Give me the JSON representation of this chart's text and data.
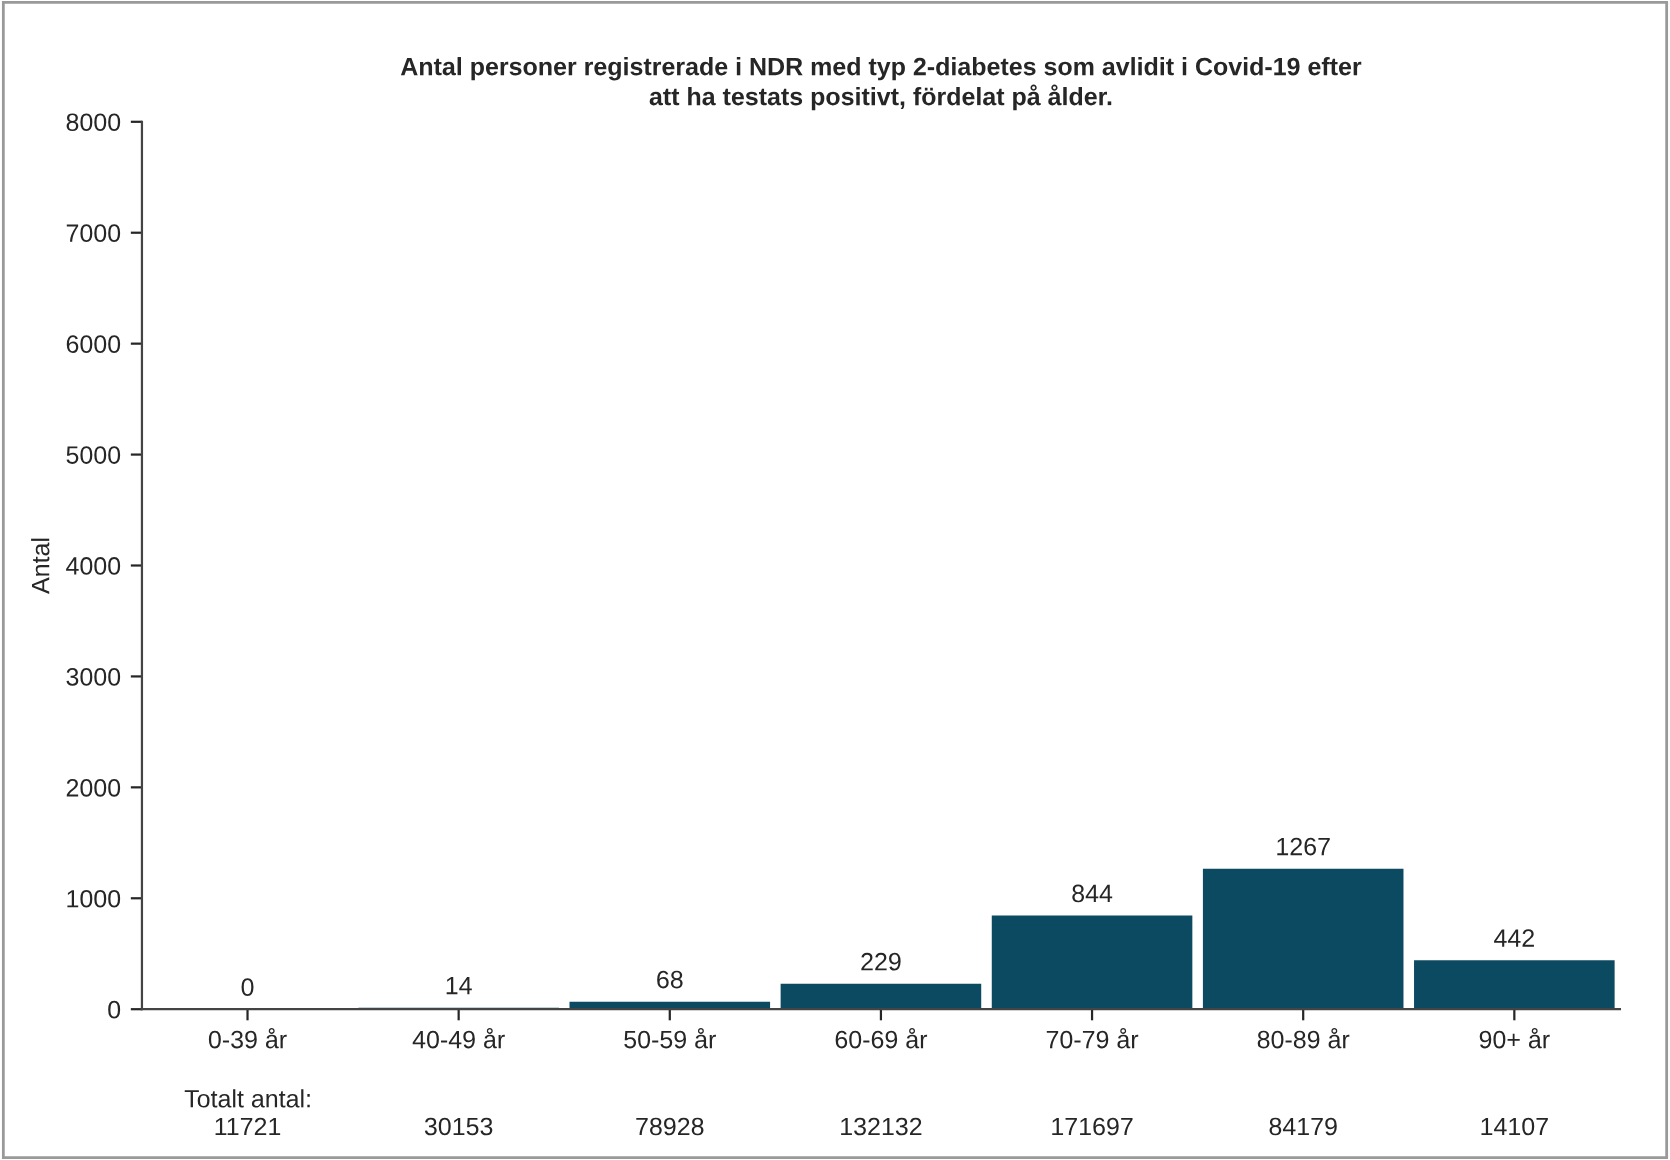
{
  "chart_data": {
    "type": "bar",
    "title": "Antal personer registrerade i NDR med typ 2-diabetes som avlidit i Covid-19 efter\natt ha testats positivt, fördelat på ålder.",
    "ylabel": "Antal",
    "categories": [
      "0-39 år",
      "40-49 år",
      "50-59 år",
      "60-69 år",
      "70-79 år",
      "80-89 år",
      "90+ år"
    ],
    "values": [
      0,
      14,
      68,
      229,
      844,
      1267,
      442
    ],
    "color": "#0b4a61",
    "data_labels": true,
    "ylim": [
      0,
      8000
    ],
    "yticks": [
      0,
      1000,
      2000,
      3000,
      4000,
      5000,
      6000,
      7000,
      8000
    ],
    "grid": false,
    "annotations": [
      "Totalt antal:",
      "11721",
      "30153",
      "78928",
      "132132",
      "171697",
      "84179",
      "14107"
    ]
  }
}
